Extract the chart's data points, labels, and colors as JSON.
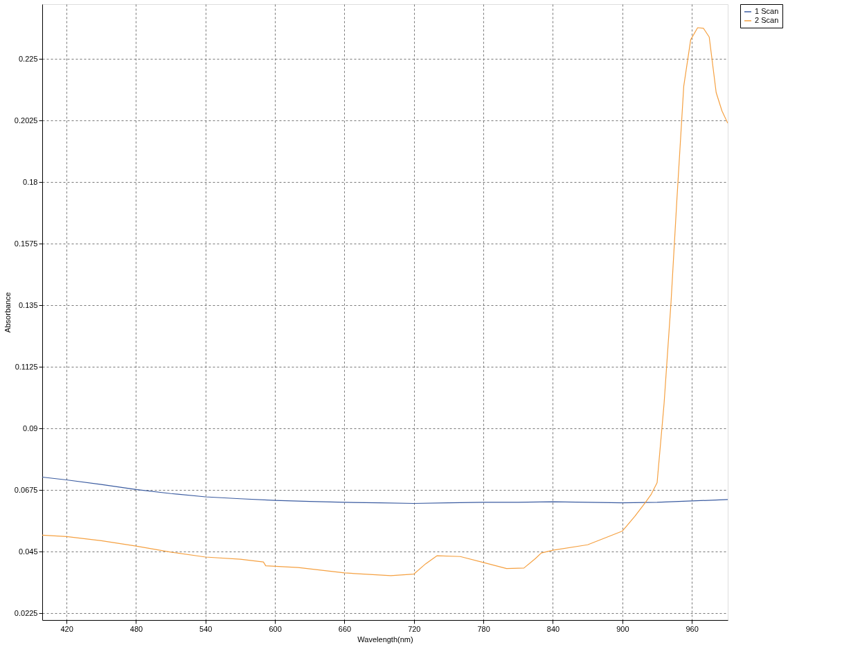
{
  "chart_data": {
    "type": "line",
    "xlabel": "Wavelength(nm)",
    "ylabel": "Absorbance",
    "xlim": [
      399,
      991
    ],
    "xticks": [
      420,
      480,
      540,
      600,
      660,
      720,
      780,
      840,
      900,
      960
    ],
    "ylim": [
      0.02,
      0.245
    ],
    "yticks": [
      0.0225,
      0.045,
      0.0675,
      0.09,
      0.1125,
      0.135,
      0.1575,
      0.18,
      0.2025,
      0.225
    ],
    "grid": true,
    "legend": "top right",
    "marker": "none",
    "line_style": "solid",
    "series": [
      {
        "name": "1 Scan",
        "color": "#3a5ba0",
        "x": [
          399,
          420,
          450,
          480,
          510,
          540,
          570,
          600,
          630,
          660,
          690,
          720,
          750,
          780,
          810,
          840,
          870,
          900,
          930,
          960,
          991
        ],
        "values": [
          0.0722,
          0.0712,
          0.0695,
          0.0677,
          0.0662,
          0.065,
          0.0643,
          0.0637,
          0.0633,
          0.063,
          0.0628,
          0.0626,
          0.0628,
          0.063,
          0.063,
          0.0632,
          0.063,
          0.0628,
          0.063,
          0.0635,
          0.064
        ]
      },
      {
        "name": "2 Scan",
        "color": "#f5a040",
        "x": [
          399,
          420,
          450,
          480,
          510,
          540,
          570,
          590,
          592,
          620,
          660,
          700,
          720,
          730,
          740,
          760,
          780,
          800,
          815,
          825,
          830,
          840,
          870,
          900,
          911,
          920,
          925,
          930,
          936,
          942,
          947,
          953,
          959,
          965,
          970,
          975,
          981,
          986,
          991
        ],
        "values": [
          0.051,
          0.0505,
          0.049,
          0.047,
          0.0448,
          0.043,
          0.0422,
          0.0412,
          0.0398,
          0.0392,
          0.0372,
          0.0362,
          0.0368,
          0.0405,
          0.0435,
          0.0432,
          0.041,
          0.0388,
          0.039,
          0.0425,
          0.0445,
          0.0455,
          0.0475,
          0.0525,
          0.058,
          0.063,
          0.066,
          0.0702,
          0.099,
          0.136,
          0.173,
          0.215,
          0.232,
          0.2364,
          0.2362,
          0.233,
          0.2127,
          0.206,
          0.2015
        ]
      }
    ]
  }
}
